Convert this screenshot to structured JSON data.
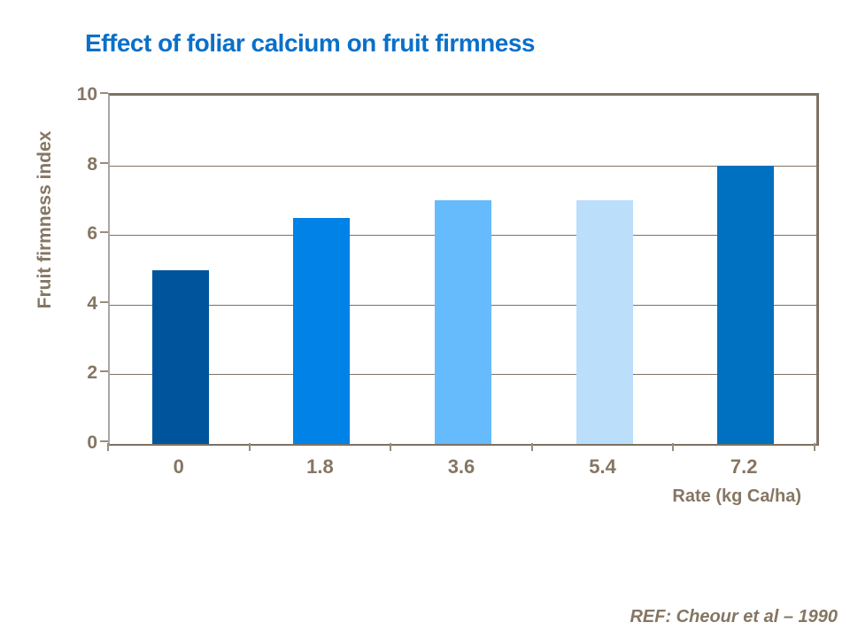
{
  "title": "Effect of foliar calcium on fruit firmness",
  "colors": {
    "title_text": "#0a70c8",
    "axis_text": "#857663",
    "frame": "#7e7161",
    "y_axis_line": "#a6a6a6",
    "gridline": "#7e7161"
  },
  "chart_data": {
    "type": "bar",
    "title": "Effect of foliar calcium on fruit firmness",
    "categories": [
      "0",
      "1.8",
      "3.6",
      "5.4",
      "7.2"
    ],
    "values": [
      5,
      6.5,
      7,
      7,
      8
    ],
    "bar_colors": [
      "#00549b",
      "#0082e6",
      "#66bbfc",
      "#bbdefb",
      "#0070c0"
    ],
    "xlabel": "Rate (kg Ca/ha)",
    "ylabel": "Fruit firmness index",
    "ylim": [
      0,
      10
    ],
    "yticks": [
      0,
      2,
      4,
      6,
      8,
      10
    ],
    "grid": true,
    "legend_position": "none"
  },
  "footer": {
    "ref": "REF: Cheour et al – 1990"
  }
}
